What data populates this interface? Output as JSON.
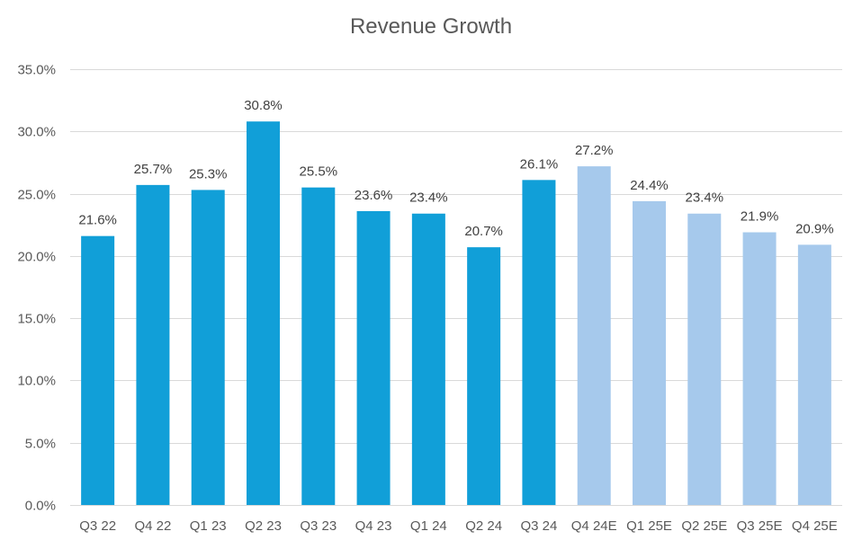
{
  "chart_data": {
    "type": "bar",
    "title": "Revenue Growth",
    "xlabel": "",
    "ylabel": "",
    "categories": [
      "Q3 22",
      "Q4 22",
      "Q1 23",
      "Q2 23",
      "Q3 23",
      "Q4 23",
      "Q1 24",
      "Q2 24",
      "Q3 24",
      "Q4 24E",
      "Q1 25E",
      "Q2 25E",
      "Q3 25E",
      "Q4 25E"
    ],
    "values": [
      21.6,
      25.7,
      25.3,
      30.8,
      25.5,
      23.6,
      23.4,
      20.7,
      26.1,
      27.2,
      24.4,
      23.4,
      21.9,
      20.9
    ],
    "data_labels": [
      "21.6%",
      "25.7%",
      "25.3%",
      "30.8%",
      "25.5%",
      "23.6%",
      "23.4%",
      "20.7%",
      "26.1%",
      "27.2%",
      "24.4%",
      "23.4%",
      "21.9%",
      "20.9%"
    ],
    "estimate": [
      false,
      false,
      false,
      false,
      false,
      false,
      false,
      false,
      false,
      true,
      true,
      true,
      true,
      true
    ],
    "ylim": [
      0,
      35
    ],
    "yticks": [
      0,
      5,
      10,
      15,
      20,
      25,
      30,
      35
    ],
    "ytick_labels": [
      "0.0%",
      "5.0%",
      "10.0%",
      "15.0%",
      "20.0%",
      "25.0%",
      "30.0%",
      "35.0%"
    ],
    "grid": true,
    "legend": "none",
    "colors": {
      "actual": "#119FD8",
      "estimate": "#A6C9EC",
      "grid": "#D9D9D9",
      "text": "#595959"
    }
  }
}
